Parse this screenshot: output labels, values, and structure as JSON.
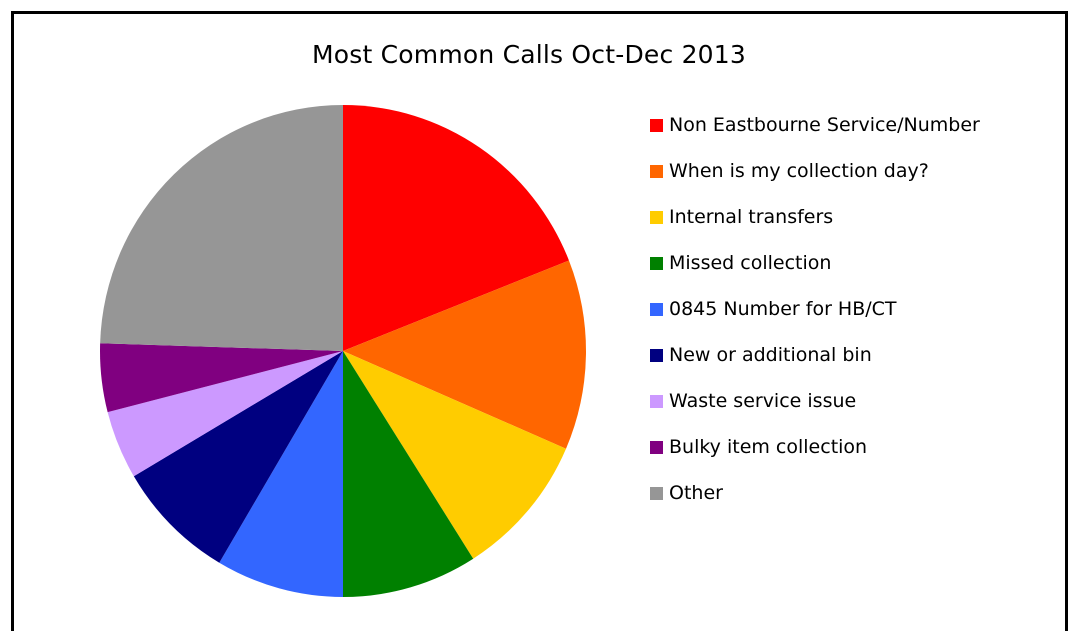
{
  "chart_data": {
    "type": "pie",
    "title": "Most Common Calls Oct-Dec 2013",
    "legend_position": "right",
    "slices": [
      {
        "label": "Non Eastbourne Service/Number",
        "value": 19.0,
        "color": "#ff0000"
      },
      {
        "label": "When is my collection day?",
        "value": 12.5,
        "color": "#ff6600"
      },
      {
        "label": "Internal transfers",
        "value": 9.5,
        "color": "#ffcc00"
      },
      {
        "label": "Missed collection",
        "value": 9.0,
        "color": "#008000"
      },
      {
        "label": "0845 Number for HB/CT",
        "value": 8.5,
        "color": "#3366ff"
      },
      {
        "label": "New or additional bin",
        "value": 8.0,
        "color": "#000080"
      },
      {
        "label": "Waste service issue",
        "value": 4.5,
        "color": "#cc99ff"
      },
      {
        "label": "Bulky item collection",
        "value": 4.5,
        "color": "#800080"
      },
      {
        "label": "Other",
        "value": 24.5,
        "color": "#969696"
      }
    ]
  }
}
